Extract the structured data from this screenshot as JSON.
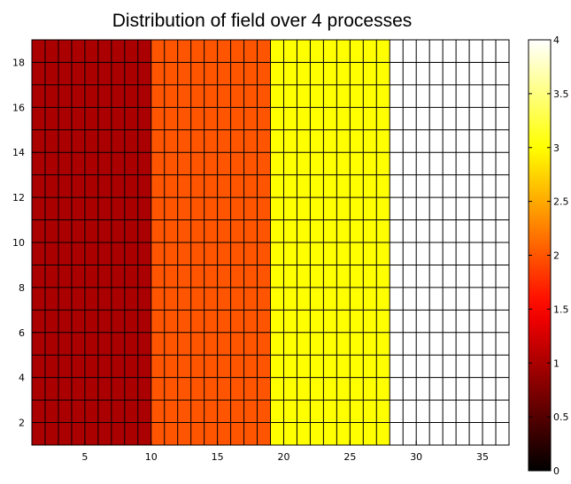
{
  "chart_data": {
    "type": "heatmap",
    "title": "Distribution of field over 4 processes",
    "xlabel": "",
    "ylabel": "",
    "xlim": [
      1,
      37
    ],
    "ylim": [
      1,
      19
    ],
    "cells_x": 36,
    "cells_y": 18,
    "grid": true,
    "x_ticks": [
      5,
      10,
      15,
      20,
      25,
      30,
      35
    ],
    "y_ticks": [
      2,
      4,
      6,
      8,
      10,
      12,
      14,
      16,
      18
    ],
    "regions": [
      {
        "x_from": 1,
        "x_to": 10,
        "value": 1
      },
      {
        "x_from": 10,
        "x_to": 19,
        "value": 2
      },
      {
        "x_from": 19,
        "x_to": 28,
        "value": 3
      },
      {
        "x_from": 28,
        "x_to": 37,
        "value": 4
      }
    ],
    "colorbar": {
      "colormap": "hot",
      "clim": [
        0,
        4
      ],
      "tick_values": [
        0,
        0.5,
        1,
        1.5,
        2,
        2.5,
        3,
        3.5,
        4
      ],
      "tick_labels": [
        "0",
        "0.5",
        "1",
        "1.5",
        "2",
        "2.5",
        "3",
        "3.5",
        "4"
      ]
    }
  }
}
